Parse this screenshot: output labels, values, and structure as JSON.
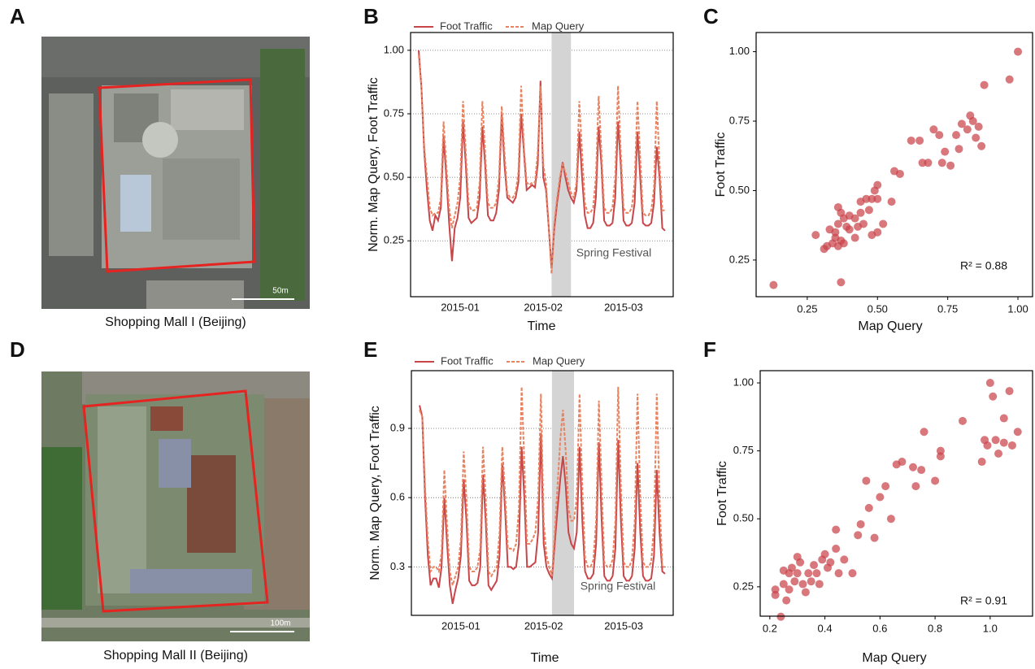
{
  "panels": [
    {
      "label": "A",
      "caption": "Shopping Mall I (Beijing)",
      "scale": "50m"
    },
    {
      "label": "D",
      "caption": "Shopping Mall II (Beijing)",
      "scale": "100m"
    }
  ],
  "chart_data": [
    {
      "type": "line",
      "panel_label": "B",
      "xlabel": "Time",
      "ylabel": "Norm. Map Query, Foot Traffic",
      "grid": true,
      "legend": "top",
      "categories": [
        null,
        null,
        null,
        null,
        null,
        null,
        null,
        null,
        null,
        null,
        null,
        null,
        null,
        null,
        null,
        "2015-01",
        null,
        null,
        null,
        null,
        null,
        null,
        null,
        null,
        null,
        null,
        null,
        null,
        null,
        null,
        null,
        null,
        null,
        null,
        null,
        null,
        null,
        null,
        null,
        null,
        null,
        null,
        null,
        null,
        null,
        "2015-02",
        null,
        null,
        null,
        null,
        null,
        null,
        null,
        null,
        null,
        null,
        null,
        null,
        null,
        null,
        null,
        null,
        null,
        null,
        null,
        null,
        null,
        null,
        null,
        null,
        null,
        null,
        null,
        null,
        "2015-03",
        null,
        null,
        null,
        null,
        null,
        null,
        null,
        null,
        null,
        null,
        null,
        null,
        null,
        null,
        null
      ],
      "highlight": {
        "label": "Spring Festival",
        "start": 48,
        "end": 55
      },
      "ylim": [
        0.03,
        1.07
      ],
      "yticks": [
        {
          "value": 0.25,
          "label": "0.25"
        },
        {
          "value": 0.5,
          "label": "0.50"
        },
        {
          "value": 0.75,
          "label": "0.75"
        },
        {
          "value": 1.0,
          "label": "1.00"
        }
      ],
      "series": [
        {
          "name": "Foot Traffic",
          "color": "#c8454a",
          "dash": false,
          "values": [
            1.0,
            0.85,
            0.6,
            0.45,
            0.33,
            0.29,
            0.35,
            0.33,
            0.38,
            0.66,
            0.5,
            0.32,
            0.17,
            0.3,
            0.34,
            0.42,
            0.72,
            0.55,
            0.34,
            0.32,
            0.33,
            0.34,
            0.42,
            0.7,
            0.55,
            0.35,
            0.33,
            0.33,
            0.36,
            0.45,
            0.75,
            0.55,
            0.42,
            0.41,
            0.4,
            0.42,
            0.48,
            0.75,
            0.6,
            0.45,
            0.46,
            0.47,
            0.46,
            0.55,
            0.88,
            0.5,
            0.45,
            0.3,
            0.14,
            0.3,
            0.4,
            0.48,
            0.56,
            0.5,
            0.45,
            0.42,
            0.4,
            0.45,
            0.68,
            0.5,
            0.35,
            0.3,
            0.3,
            0.32,
            0.42,
            0.7,
            0.55,
            0.33,
            0.31,
            0.31,
            0.32,
            0.42,
            0.72,
            0.55,
            0.33,
            0.31,
            0.31,
            0.32,
            0.4,
            0.68,
            0.5,
            0.32,
            0.31,
            0.31,
            0.32,
            0.4,
            0.62,
            0.5,
            0.3,
            0.29
          ]
        },
        {
          "name": "Map Query",
          "color": "#e8825f",
          "dash": true,
          "values": [
            0.98,
            0.85,
            0.62,
            0.5,
            0.38,
            0.35,
            0.36,
            0.36,
            0.42,
            0.72,
            0.55,
            0.38,
            0.3,
            0.35,
            0.4,
            0.5,
            0.8,
            0.6,
            0.4,
            0.37,
            0.37,
            0.38,
            0.48,
            0.8,
            0.6,
            0.4,
            0.38,
            0.38,
            0.4,
            0.5,
            0.78,
            0.6,
            0.44,
            0.42,
            0.42,
            0.44,
            0.52,
            0.86,
            0.62,
            0.48,
            0.47,
            0.48,
            0.48,
            0.6,
            0.86,
            0.55,
            0.48,
            0.3,
            0.12,
            0.32,
            0.42,
            0.5,
            0.55,
            0.52,
            0.48,
            0.44,
            0.42,
            0.48,
            0.8,
            0.6,
            0.4,
            0.36,
            0.36,
            0.38,
            0.5,
            0.82,
            0.6,
            0.38,
            0.36,
            0.36,
            0.38,
            0.5,
            0.86,
            0.6,
            0.38,
            0.36,
            0.36,
            0.38,
            0.48,
            0.8,
            0.58,
            0.36,
            0.35,
            0.35,
            0.37,
            0.46,
            0.8,
            0.55,
            0.37,
            0.37
          ]
        }
      ]
    },
    {
      "type": "scatter",
      "panel_label": "C",
      "xlabel": "Map Query",
      "ylabel": "Foot Traffic",
      "grid": false,
      "annotation": "R² = 0.88",
      "color": "#c9424a",
      "xlim": [
        0.068,
        1.052
      ],
      "ylim": [
        0.118,
        1.069
      ],
      "xticks": [
        {
          "value": 0.25,
          "label": "0.25"
        },
        {
          "value": 0.5,
          "label": "0.50"
        },
        {
          "value": 0.75,
          "label": "0.75"
        },
        {
          "value": 1.0,
          "label": "1.00"
        }
      ],
      "yticks": [
        {
          "value": 0.25,
          "label": "0.25"
        },
        {
          "value": 0.5,
          "label": "0.50"
        },
        {
          "value": 0.75,
          "label": "0.75"
        },
        {
          "value": 1.0,
          "label": "1.00"
        }
      ],
      "x": [
        0.13,
        0.28,
        0.37,
        0.32,
        0.34,
        0.35,
        0.36,
        0.37,
        0.35,
        0.38,
        0.36,
        0.37,
        0.38,
        0.4,
        0.42,
        0.36,
        0.4,
        0.43,
        0.45,
        0.44,
        0.47,
        0.48,
        0.46,
        0.5,
        0.49,
        0.5,
        0.5,
        0.52,
        0.48,
        0.42,
        0.55,
        0.56,
        0.58,
        0.62,
        0.65,
        0.66,
        0.68,
        0.7,
        0.72,
        0.73,
        0.74,
        0.76,
        0.78,
        0.79,
        0.8,
        0.82,
        0.83,
        0.84,
        0.86,
        0.85,
        0.87,
        0.88,
        0.97,
        1.0,
        0.44,
        0.39,
        0.33,
        0.31
      ],
      "y": [
        0.16,
        0.34,
        0.17,
        0.3,
        0.31,
        0.33,
        0.3,
        0.32,
        0.35,
        0.31,
        0.38,
        0.42,
        0.4,
        0.41,
        0.4,
        0.44,
        0.36,
        0.37,
        0.38,
        0.42,
        0.43,
        0.47,
        0.47,
        0.47,
        0.5,
        0.52,
        0.35,
        0.38,
        0.34,
        0.33,
        0.46,
        0.57,
        0.56,
        0.68,
        0.68,
        0.6,
        0.6,
        0.72,
        0.7,
        0.6,
        0.64,
        0.59,
        0.7,
        0.65,
        0.74,
        0.72,
        0.77,
        0.75,
        0.73,
        0.69,
        0.66,
        0.88,
        0.9,
        1.0,
        0.46,
        0.37,
        0.36,
        0.29
      ]
    },
    {
      "type": "line",
      "panel_label": "E",
      "xlabel": "Time",
      "ylabel": "Norm. Map Query, Foot Traffic",
      "grid": true,
      "legend": "top",
      "categories": [
        null,
        null,
        null,
        null,
        null,
        null,
        null,
        null,
        null,
        null,
        null,
        null,
        null,
        null,
        null,
        "2015-01",
        null,
        null,
        null,
        null,
        null,
        null,
        null,
        null,
        null,
        null,
        null,
        null,
        null,
        null,
        null,
        null,
        null,
        null,
        null,
        null,
        null,
        null,
        null,
        null,
        null,
        null,
        null,
        null,
        null,
        "2015-02",
        null,
        null,
        null,
        null,
        null,
        null,
        null,
        null,
        null,
        null,
        null,
        null,
        null,
        null,
        null,
        null,
        null,
        null,
        null,
        null,
        null,
        null,
        null,
        null,
        null,
        null,
        null,
        null,
        "2015-03",
        null,
        null,
        null,
        null,
        null,
        null,
        null,
        null,
        null,
        null,
        null,
        null,
        null,
        null,
        null
      ],
      "highlight": {
        "label": "Spring Festival",
        "start": 48,
        "end": 56
      },
      "ylim": [
        0.09,
        1.15
      ],
      "yticks": [
        0.3,
        0.6,
        0.9
      ],
      "series": [
        {
          "name": "Foot Traffic",
          "color": "#c8454a",
          "dash": false,
          "values": [
            1.0,
            0.95,
            0.6,
            0.35,
            0.22,
            0.25,
            0.25,
            0.21,
            0.3,
            0.6,
            0.4,
            0.22,
            0.14,
            0.2,
            0.25,
            0.35,
            0.68,
            0.5,
            0.24,
            0.22,
            0.22,
            0.23,
            0.3,
            0.7,
            0.5,
            0.22,
            0.2,
            0.22,
            0.24,
            0.35,
            0.75,
            0.55,
            0.3,
            0.3,
            0.29,
            0.3,
            0.4,
            0.82,
            0.6,
            0.3,
            0.3,
            0.31,
            0.32,
            0.45,
            0.88,
            0.4,
            0.3,
            0.27,
            0.25,
            0.4,
            0.55,
            0.68,
            0.78,
            0.65,
            0.45,
            0.4,
            0.38,
            0.45,
            0.82,
            0.5,
            0.28,
            0.25,
            0.25,
            0.27,
            0.4,
            0.84,
            0.5,
            0.26,
            0.24,
            0.24,
            0.26,
            0.38,
            0.85,
            0.5,
            0.26,
            0.24,
            0.24,
            0.26,
            0.38,
            0.75,
            0.45,
            0.26,
            0.24,
            0.24,
            0.25,
            0.35,
            0.72,
            0.45,
            0.28,
            0.27
          ]
        },
        {
          "name": "Map Query",
          "color": "#e8825f",
          "dash": true,
          "values": [
            0.98,
            0.95,
            0.65,
            0.42,
            0.28,
            0.3,
            0.3,
            0.28,
            0.36,
            0.72,
            0.48,
            0.28,
            0.22,
            0.26,
            0.3,
            0.42,
            0.8,
            0.6,
            0.3,
            0.28,
            0.28,
            0.3,
            0.38,
            0.82,
            0.6,
            0.28,
            0.26,
            0.28,
            0.3,
            0.45,
            0.82,
            0.62,
            0.38,
            0.38,
            0.37,
            0.4,
            0.55,
            1.08,
            0.75,
            0.4,
            0.4,
            0.42,
            0.45,
            0.6,
            1.05,
            0.5,
            0.35,
            0.3,
            0.26,
            0.45,
            0.65,
            0.85,
            0.98,
            0.8,
            0.55,
            0.5,
            0.5,
            0.6,
            1.05,
            0.65,
            0.34,
            0.3,
            0.3,
            0.33,
            0.5,
            1.02,
            0.65,
            0.32,
            0.3,
            0.3,
            0.33,
            0.5,
            1.08,
            0.65,
            0.32,
            0.3,
            0.3,
            0.33,
            0.5,
            1.05,
            0.6,
            0.32,
            0.3,
            0.3,
            0.32,
            0.48,
            1.05,
            0.6,
            0.3,
            0.3
          ]
        }
      ]
    },
    {
      "type": "scatter",
      "panel_label": "F",
      "xlabel": "Map Query",
      "ylabel": "Foot Traffic",
      "grid": false,
      "annotation": "R² = 0.91",
      "color": "#c9424a",
      "xlim": [
        0.165,
        1.154
      ],
      "ylim": [
        0.142,
        1.045
      ],
      "xticks": [
        0.2,
        0.4,
        0.6,
        0.8,
        {
          "value": 1.0,
          "label": "1.0"
        }
      ],
      "yticks": [
        {
          "value": 0.25,
          "label": "0.25"
        },
        {
          "value": 0.5,
          "label": "0.50"
        },
        {
          "value": 0.75,
          "label": "0.75"
        },
        {
          "value": 1.0,
          "label": "1.00"
        }
      ],
      "x": [
        0.24,
        0.22,
        0.22,
        0.25,
        0.26,
        0.27,
        0.27,
        0.28,
        0.29,
        0.3,
        0.31,
        0.32,
        0.33,
        0.34,
        0.35,
        0.36,
        0.37,
        0.38,
        0.39,
        0.4,
        0.41,
        0.42,
        0.44,
        0.45,
        0.44,
        0.47,
        0.5,
        0.52,
        0.53,
        0.55,
        0.56,
        0.58,
        0.6,
        0.62,
        0.64,
        0.66,
        0.68,
        0.72,
        0.73,
        0.75,
        0.76,
        0.8,
        0.82,
        0.82,
        0.9,
        0.97,
        0.98,
        0.99,
        1.0,
        1.01,
        1.02,
        1.03,
        1.05,
        1.05,
        1.07,
        1.08,
        1.1,
        0.3,
        0.25
      ],
      "y": [
        0.14,
        0.22,
        0.24,
        0.26,
        0.2,
        0.24,
        0.3,
        0.32,
        0.27,
        0.3,
        0.34,
        0.26,
        0.23,
        0.3,
        0.27,
        0.33,
        0.3,
        0.26,
        0.35,
        0.37,
        0.32,
        0.34,
        0.39,
        0.3,
        0.46,
        0.35,
        0.3,
        0.44,
        0.48,
        0.64,
        0.54,
        0.43,
        0.58,
        0.62,
        0.5,
        0.7,
        0.71,
        0.69,
        0.62,
        0.68,
        0.82,
        0.64,
        0.75,
        0.73,
        0.86,
        0.71,
        0.79,
        0.77,
        1.0,
        0.95,
        0.79,
        0.74,
        0.87,
        0.78,
        0.97,
        0.77,
        0.82,
        0.36,
        0.31
      ]
    }
  ]
}
